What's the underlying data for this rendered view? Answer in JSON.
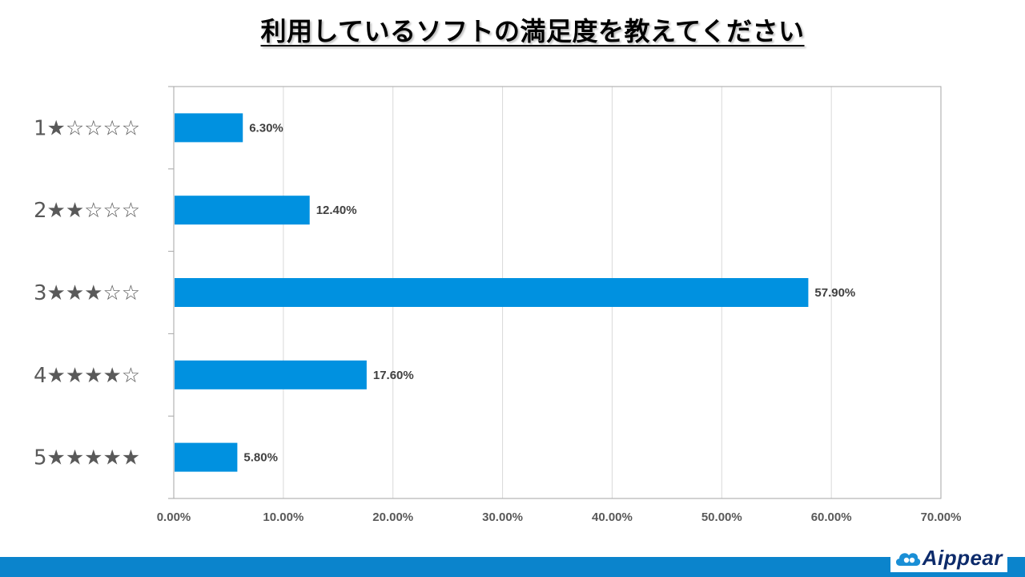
{
  "chart_data": {
    "type": "bar",
    "orientation": "horizontal",
    "title": "利用しているソフトの満足度を教えてください",
    "categories": [
      "1★☆☆☆☆",
      "2★★☆☆☆",
      "3★★★☆☆",
      "4★★★★☆",
      "5★★★★★"
    ],
    "values": [
      6.3,
      12.4,
      57.9,
      17.6,
      5.8
    ],
    "value_labels": [
      "6.30%",
      "12.40%",
      "57.90%",
      "17.60%",
      "5.80%"
    ],
    "xlim": [
      0,
      70
    ],
    "xticks": [
      0,
      10,
      20,
      30,
      40,
      50,
      60,
      70
    ],
    "xtick_labels": [
      "0.00%",
      "10.00%",
      "20.00%",
      "30.00%",
      "40.00%",
      "50.00%",
      "60.00%",
      "70.00%"
    ],
    "xlabel": "",
    "ylabel": "",
    "grid": true,
    "bar_color": "#0091e0"
  },
  "logo": {
    "text": "Aippear",
    "color": "#0d2b6b"
  },
  "colors": {
    "footer": "#0b84cc",
    "gridline": "#d9d9d9",
    "axis": "#a6a6a6"
  }
}
